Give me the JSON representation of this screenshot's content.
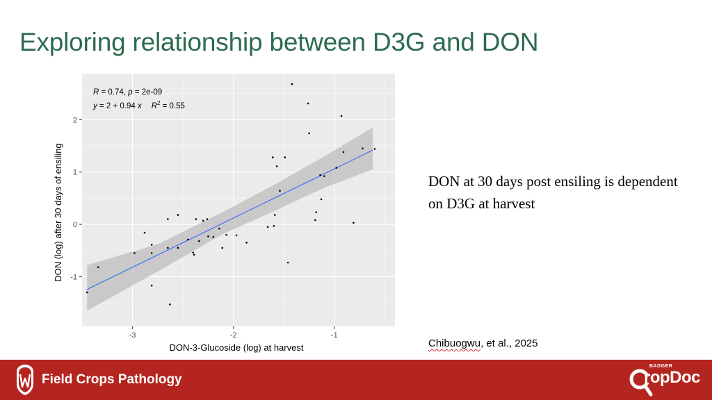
{
  "slide": {
    "title": "Exploring relationship between D3G and DON",
    "bullet": "DON at 30 days post ensiling is dependent on D3G at harvest",
    "citation_name": "Chibuogwu",
    "citation_rest": ", et al., 2025"
  },
  "footer": {
    "label": "Field Crops Pathology",
    "logo_small": "BADGER",
    "logo_main": "ropDoc"
  },
  "colors": {
    "title": "#2d6b4f",
    "footer_bg": "#b5251f",
    "panel_bg": "#ebebeb",
    "fit_line": "#3366ff",
    "band": "#bdbdbd"
  },
  "chart_data": {
    "type": "scatter",
    "xlabel": "DON-3-Glucoside (log) at harvest",
    "ylabel": "DON (log) after 30 days of ensiling",
    "xlim": [
      -3.5,
      -0.4
    ],
    "ylim": [
      -1.95,
      2.88
    ],
    "x_ticks": [
      -3,
      -2,
      -1
    ],
    "x_tick_labels": [
      "-3",
      "-2",
      "-1"
    ],
    "y_ticks": [
      -1,
      0,
      1,
      2
    ],
    "y_tick_labels": [
      "-1",
      "0",
      "1",
      "2"
    ],
    "grid": true,
    "stats": {
      "r_label": "R",
      "r_text": " = 0.74, ",
      "p_label": "p",
      "p_text": " = 2e-09",
      "eq_y": "y",
      "eq_mid": " = 2 + 0.94 ",
      "eq_x": "x",
      "r2_label": "R",
      "r2_text": " = 0.55"
    },
    "fit": {
      "intercept": 2.0,
      "slope": 0.94,
      "x_range": [
        -3.45,
        -0.62
      ]
    },
    "confidence_band": {
      "x": [
        -3.45,
        -2.75,
        -2.1,
        -1.6,
        -1.1,
        -0.62
      ],
      "lower": [
        -1.65,
        -0.9,
        -0.18,
        0.25,
        0.7,
        1.05
      ],
      "upper": [
        -0.78,
        -0.38,
        0.24,
        0.75,
        1.3,
        1.85
      ]
    },
    "points": [
      {
        "x": -3.45,
        "y": -1.3
      },
      {
        "x": -3.34,
        "y": -0.82
      },
      {
        "x": -2.98,
        "y": -0.55
      },
      {
        "x": -2.88,
        "y": -0.16
      },
      {
        "x": -2.81,
        "y": -0.39
      },
      {
        "x": -2.81,
        "y": -0.55
      },
      {
        "x": -2.81,
        "y": -1.17
      },
      {
        "x": -2.65,
        "y": 0.1
      },
      {
        "x": -2.65,
        "y": -0.45
      },
      {
        "x": -2.63,
        "y": -1.53
      },
      {
        "x": -2.55,
        "y": 0.18
      },
      {
        "x": -2.55,
        "y": -0.45
      },
      {
        "x": -2.45,
        "y": -0.29
      },
      {
        "x": -2.4,
        "y": -0.54
      },
      {
        "x": -2.39,
        "y": -0.58
      },
      {
        "x": -2.37,
        "y": 0.1
      },
      {
        "x": -2.34,
        "y": -0.32
      },
      {
        "x": -2.3,
        "y": 0.07
      },
      {
        "x": -2.26,
        "y": 0.1
      },
      {
        "x": -2.25,
        "y": -0.23
      },
      {
        "x": -2.2,
        "y": -0.24
      },
      {
        "x": -2.14,
        "y": -0.08
      },
      {
        "x": -2.11,
        "y": -0.45
      },
      {
        "x": -2.07,
        "y": -0.2
      },
      {
        "x": -1.97,
        "y": -0.21
      },
      {
        "x": -1.87,
        "y": -0.35
      },
      {
        "x": -1.66,
        "y": -0.05
      },
      {
        "x": -1.61,
        "y": 1.28
      },
      {
        "x": -1.6,
        "y": -0.03
      },
      {
        "x": -1.59,
        "y": 0.18
      },
      {
        "x": -1.57,
        "y": 1.11
      },
      {
        "x": -1.54,
        "y": 0.64
      },
      {
        "x": -1.49,
        "y": 1.28
      },
      {
        "x": -1.46,
        "y": -0.73
      },
      {
        "x": -1.42,
        "y": 2.68
      },
      {
        "x": -1.26,
        "y": 2.31
      },
      {
        "x": -1.25,
        "y": 1.74
      },
      {
        "x": -1.19,
        "y": 0.08
      },
      {
        "x": -1.18,
        "y": 0.23
      },
      {
        "x": -1.14,
        "y": 0.94
      },
      {
        "x": -1.13,
        "y": 0.48
      },
      {
        "x": -1.1,
        "y": 0.92
      },
      {
        "x": -0.98,
        "y": 1.08
      },
      {
        "x": -0.93,
        "y": 2.07
      },
      {
        "x": -0.91,
        "y": 1.38
      },
      {
        "x": -0.81,
        "y": 0.03
      },
      {
        "x": -0.72,
        "y": 1.45
      },
      {
        "x": -0.6,
        "y": 1.44
      }
    ]
  }
}
